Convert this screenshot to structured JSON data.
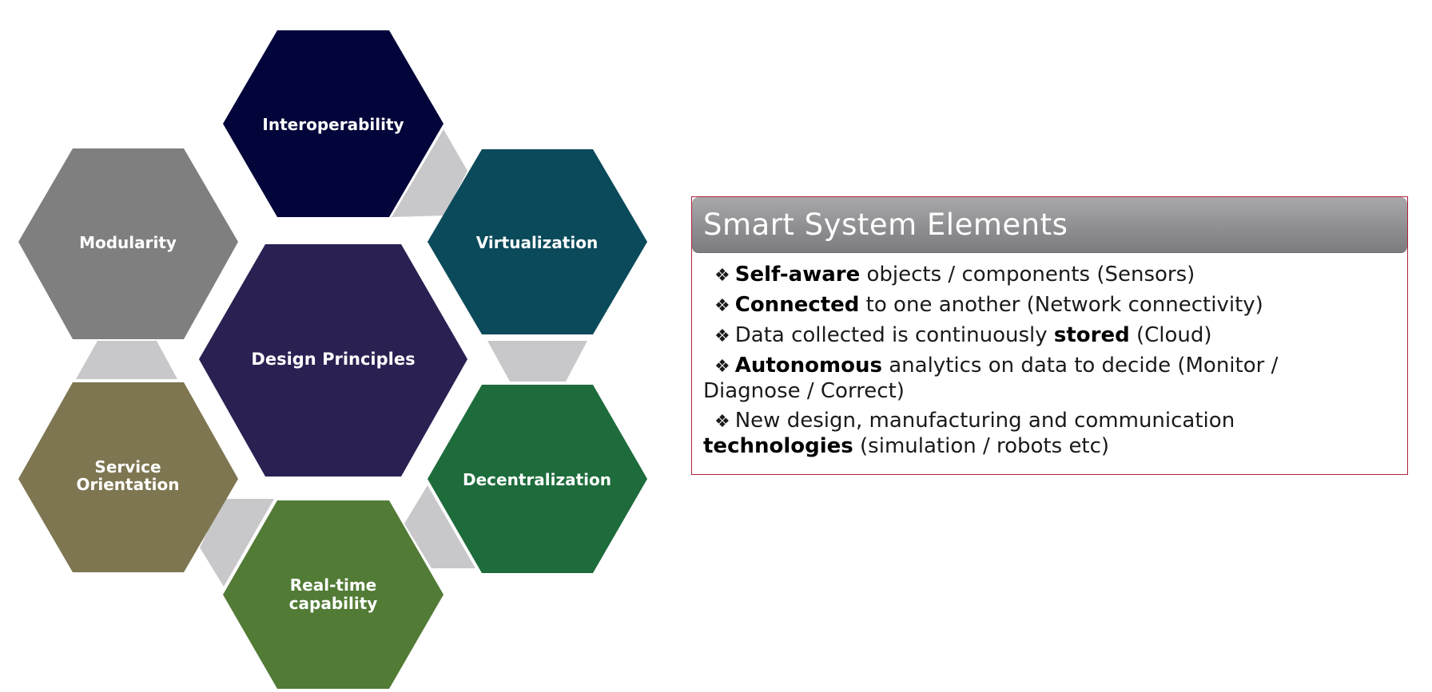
{
  "diagram": {
    "center": {
      "label": "Design Principles",
      "color": "#2b2052"
    },
    "hexes": [
      {
        "id": "interoperability",
        "label_lines": [
          "Interoperability"
        ],
        "color": "#02053a"
      },
      {
        "id": "virtualization",
        "label_lines": [
          "Virtualization"
        ],
        "color": "#0b4a5a"
      },
      {
        "id": "decentralization",
        "label_lines": [
          "Decentralization"
        ],
        "color": "#1e6b3c"
      },
      {
        "id": "real-time",
        "label_lines": [
          "Real-time",
          "capability"
        ],
        "color": "#527b36"
      },
      {
        "id": "service-orientation",
        "label_lines": [
          "Service",
          "Orientation"
        ],
        "color": "#7d7651"
      },
      {
        "id": "modularity",
        "label_lines": [
          "Modularity"
        ],
        "color": "#7f7f7f"
      }
    ],
    "connector_color": "#c8c8cb"
  },
  "panel": {
    "title": "Smart System Elements",
    "bullet_symbol": "❖",
    "items": [
      {
        "bold": "Self-aware",
        "rest": " objects / components (Sensors)"
      },
      {
        "bold": "Connected",
        "rest": " to one another (Network connectivity)"
      },
      {
        "pre": "Data collected is continuously ",
        "bold": "stored",
        "rest": " (Cloud)"
      },
      {
        "bold": "Autonomous",
        "rest": " analytics on data to decide (Monitor /",
        "line2": "Diagnose / Correct)"
      },
      {
        "pre": "New design, manufacturing and communication",
        "line2_bold": "technologies",
        "line2_rest": " (simulation / robots etc)"
      }
    ]
  }
}
